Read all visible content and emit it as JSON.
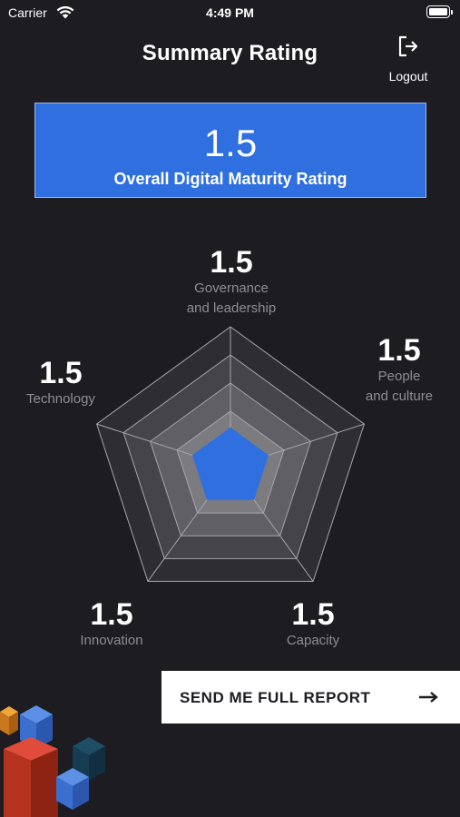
{
  "status_bar": {
    "carrier": "Carrier",
    "time": "4:49 PM",
    "icons": [
      "wifi-icon",
      "battery-icon"
    ]
  },
  "header": {
    "title": "Summary Rating",
    "logout_label": "Logout",
    "logout_icon": "logout-icon"
  },
  "overall": {
    "value": "1.5",
    "label": "Overall Digital Maturity Rating"
  },
  "dimensions": [
    {
      "value": "1.5",
      "label_line1": "Governance",
      "label_line2": "and leadership"
    },
    {
      "value": "1.5",
      "label_line1": "People",
      "label_line2": "and culture"
    },
    {
      "value": "1.5",
      "label_line1": "Capacity",
      "label_line2": ""
    },
    {
      "value": "1.5",
      "label_line1": "Innovation",
      "label_line2": ""
    },
    {
      "value": "1.5",
      "label_line1": "Technology",
      "label_line2": ""
    }
  ],
  "radar": {
    "levels": 5,
    "max": 5,
    "rating": 1.5
  },
  "report_button": {
    "label": "SEND ME FULL REPORT",
    "icon": "arrow-right-icon"
  },
  "colors": {
    "background": "#1c1c21",
    "accent": "#2f6fdf",
    "card_border": "#9cb8ee",
    "muted_text": "#8d8d93",
    "grid_line": "#a5a5ab"
  }
}
